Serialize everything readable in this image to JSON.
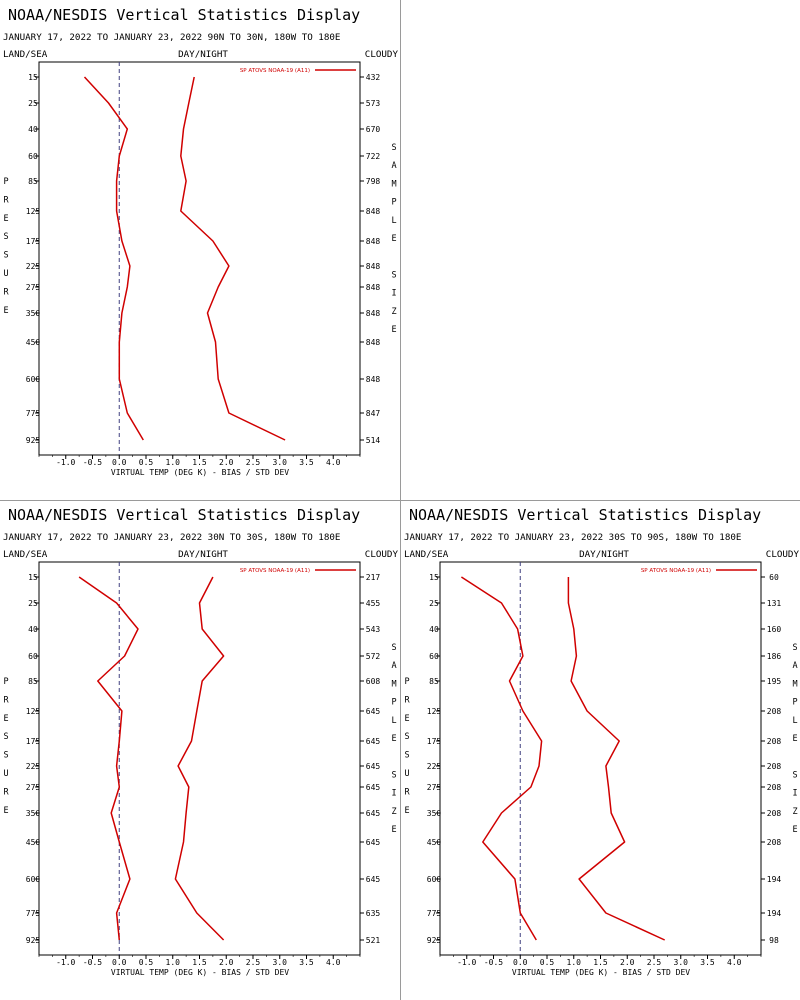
{
  "colors": {
    "series": "#d00000",
    "zero_line": "#404080",
    "axes": "#000000",
    "divider": "#9a9a9a"
  },
  "chart_data": [
    {
      "type": "line",
      "title": "NOAA/NESDIS Vertical Statistics Display",
      "subtitle": "JANUARY 17, 2022 TO JANUARY 23, 2022 90N TO 30N, 180W TO 180E",
      "header_left": "LAND/SEA",
      "header_center": "DAY/NIGHT",
      "header_right": "CLOUDY",
      "left_axis_label": "PRESSURE",
      "right_axis_label": "SAMPLE SIZE",
      "xlabel": "VIRTUAL TEMP (DEG K) - BIAS / STD DEV",
      "xlim": [
        -1.5,
        4.5
      ],
      "x_ticks": [
        "-1.0",
        "-0.5",
        "0.0",
        "0.5",
        "1.0",
        "1.5",
        "2.0",
        "2.5",
        "3.0",
        "3.5",
        "4.0"
      ],
      "pressure_levels": [
        "15",
        "25",
        "40",
        "60",
        "85",
        "125",
        "175",
        "225",
        "275",
        "350",
        "450",
        "600",
        "775",
        "925"
      ],
      "sample_sizes": [
        "432",
        "573",
        "670",
        "722",
        "798",
        "848",
        "848",
        "848",
        "848",
        "848",
        "848",
        "848",
        "847",
        "514"
      ],
      "legend": "SP ATOVS NOAA-19 (A11)",
      "legend_placement": "top-right",
      "series": [
        {
          "values": [
            -0.65,
            -0.2,
            0.15,
            0.0,
            -0.05,
            -0.05,
            0.05,
            0.2,
            0.15,
            0.05,
            0.0,
            0.0,
            0.15,
            0.45
          ]
        },
        {
          "values": [
            1.4,
            1.3,
            1.2,
            1.15,
            1.25,
            1.15,
            1.75,
            2.05,
            1.85,
            1.65,
            1.8,
            1.85,
            2.05,
            3.1
          ]
        }
      ]
    },
    {
      "type": "line",
      "title": "NOAA/NESDIS Vertical Statistics Display",
      "subtitle": "JANUARY 17, 2022 TO JANUARY 23, 2022 30N TO 30S, 180W TO 180E",
      "header_left": "LAND/SEA",
      "header_center": "DAY/NIGHT",
      "header_right": "CLOUDY",
      "left_axis_label": "PRESSURE",
      "right_axis_label": "SAMPLE SIZE",
      "xlabel": "VIRTUAL TEMP (DEG K) - BIAS / STD DEV",
      "xlim": [
        -1.5,
        4.5
      ],
      "x_ticks": [
        "-1.0",
        "-0.5",
        "0.0",
        "0.5",
        "1.0",
        "1.5",
        "2.0",
        "2.5",
        "3.0",
        "3.5",
        "4.0"
      ],
      "pressure_levels": [
        "15",
        "25",
        "40",
        "60",
        "85",
        "125",
        "175",
        "225",
        "275",
        "350",
        "450",
        "600",
        "775",
        "925"
      ],
      "sample_sizes": [
        "217",
        "455",
        "543",
        "572",
        "608",
        "645",
        "645",
        "645",
        "645",
        "645",
        "645",
        "645",
        "635",
        "521"
      ],
      "legend": "SP ATOVS NOAA-19 (A11)",
      "legend_placement": "top-right",
      "series": [
        {
          "values": [
            -0.75,
            -0.05,
            0.35,
            0.1,
            -0.4,
            0.05,
            0.0,
            -0.05,
            0.0,
            -0.15,
            0.0,
            0.2,
            -0.05,
            0.0
          ]
        },
        {
          "values": [
            1.75,
            1.5,
            1.55,
            1.95,
            1.55,
            1.45,
            1.35,
            1.1,
            1.3,
            1.25,
            1.2,
            1.05,
            1.45,
            1.95
          ]
        }
      ]
    },
    {
      "type": "line",
      "title": "NOAA/NESDIS Vertical Statistics Display",
      "subtitle": "JANUARY 17, 2022 TO JANUARY 23, 2022 30S TO 90S, 180W TO 180E",
      "header_left": "LAND/SEA",
      "header_center": "DAY/NIGHT",
      "header_right": "CLOUDY",
      "left_axis_label": "PRESSURE",
      "right_axis_label": "SAMPLE SIZE",
      "xlabel": "VIRTUAL TEMP (DEG K) - BIAS / STD DEV",
      "xlim": [
        -1.5,
        4.5
      ],
      "x_ticks": [
        "-1.0",
        "-0.5",
        "0.0",
        "0.5",
        "1.0",
        "1.5",
        "2.0",
        "2.5",
        "3.0",
        "3.5",
        "4.0"
      ],
      "pressure_levels": [
        "15",
        "25",
        "40",
        "60",
        "85",
        "125",
        "175",
        "225",
        "275",
        "350",
        "450",
        "600",
        "775",
        "925"
      ],
      "sample_sizes": [
        "60",
        "131",
        "160",
        "186",
        "195",
        "208",
        "208",
        "208",
        "208",
        "208",
        "208",
        "194",
        "194",
        "98"
      ],
      "legend": "SP ATOVS NOAA-19 (A11)",
      "legend_placement": "top-right",
      "series": [
        {
          "values": [
            -1.1,
            -0.35,
            -0.05,
            0.05,
            -0.2,
            0.05,
            0.4,
            0.35,
            0.2,
            -0.35,
            -0.7,
            -0.1,
            0.0,
            0.3
          ]
        },
        {
          "values": [
            0.9,
            0.9,
            1.0,
            1.05,
            0.95,
            1.25,
            1.85,
            1.6,
            1.65,
            1.7,
            1.95,
            1.1,
            1.6,
            2.7
          ]
        }
      ]
    }
  ]
}
